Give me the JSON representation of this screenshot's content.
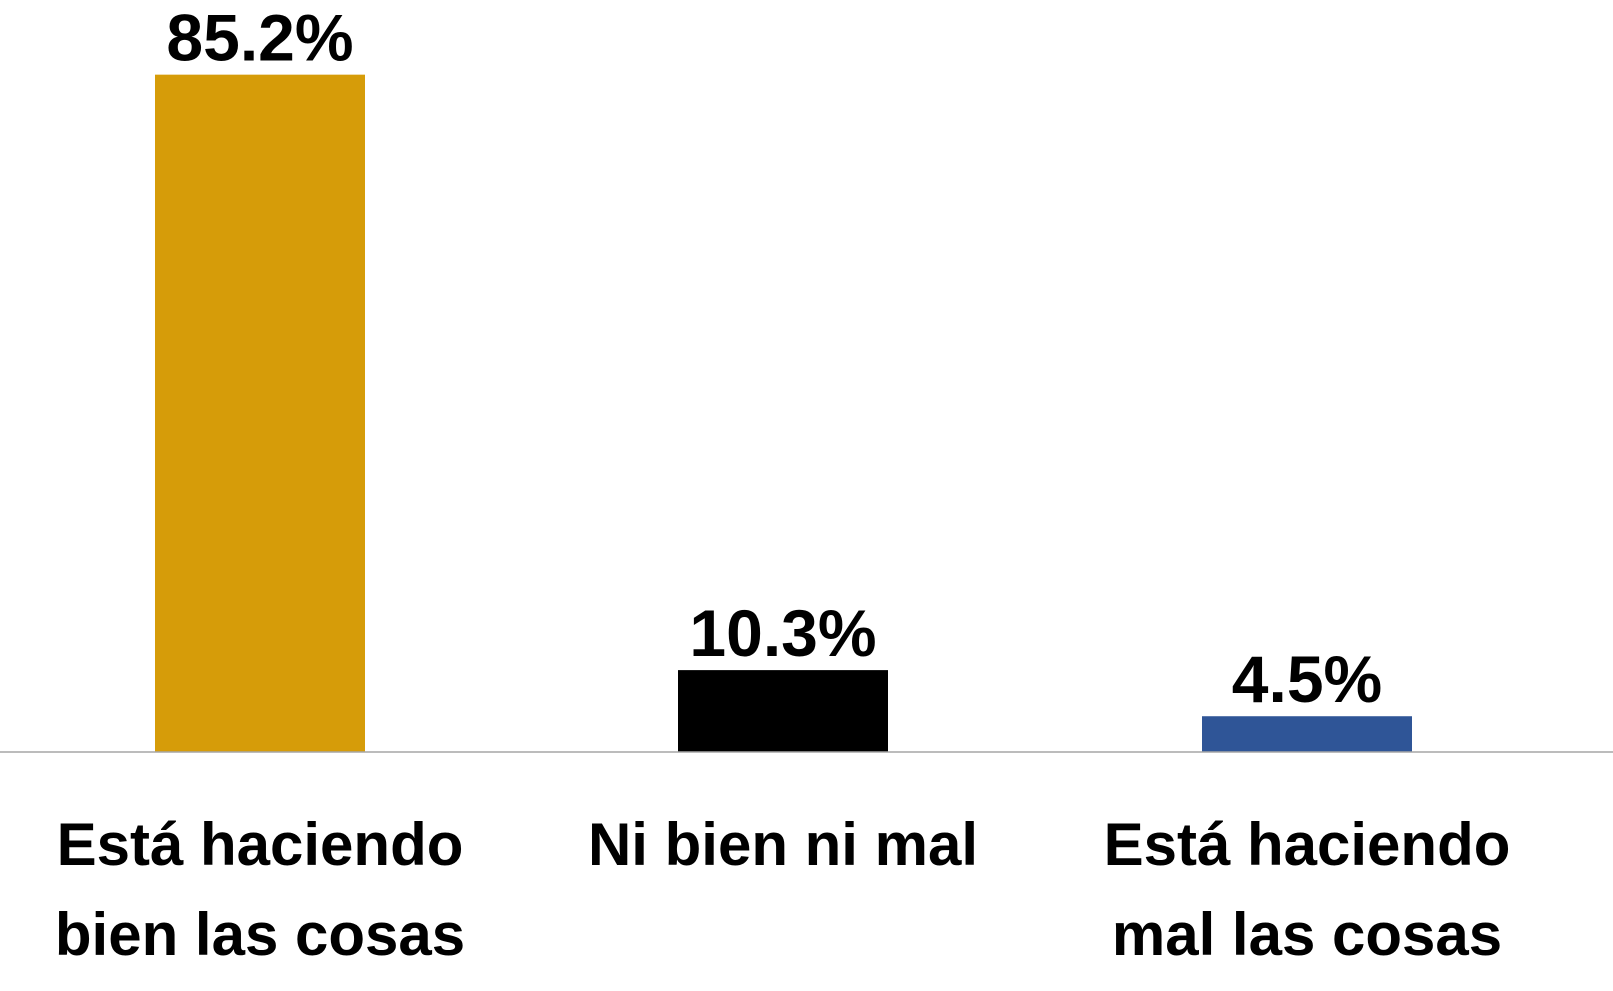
{
  "chart_data": {
    "type": "bar",
    "categories": [
      "Está haciendo bien las cosas",
      "Ni bien ni mal",
      "Está haciendo mal las cosas"
    ],
    "values": [
      85.2,
      10.3,
      4.5
    ],
    "value_labels": [
      "85.2%",
      "10.3%",
      "4.5%"
    ],
    "colors": [
      "#d69c09",
      "#000000",
      "#2f5597"
    ]
  }
}
